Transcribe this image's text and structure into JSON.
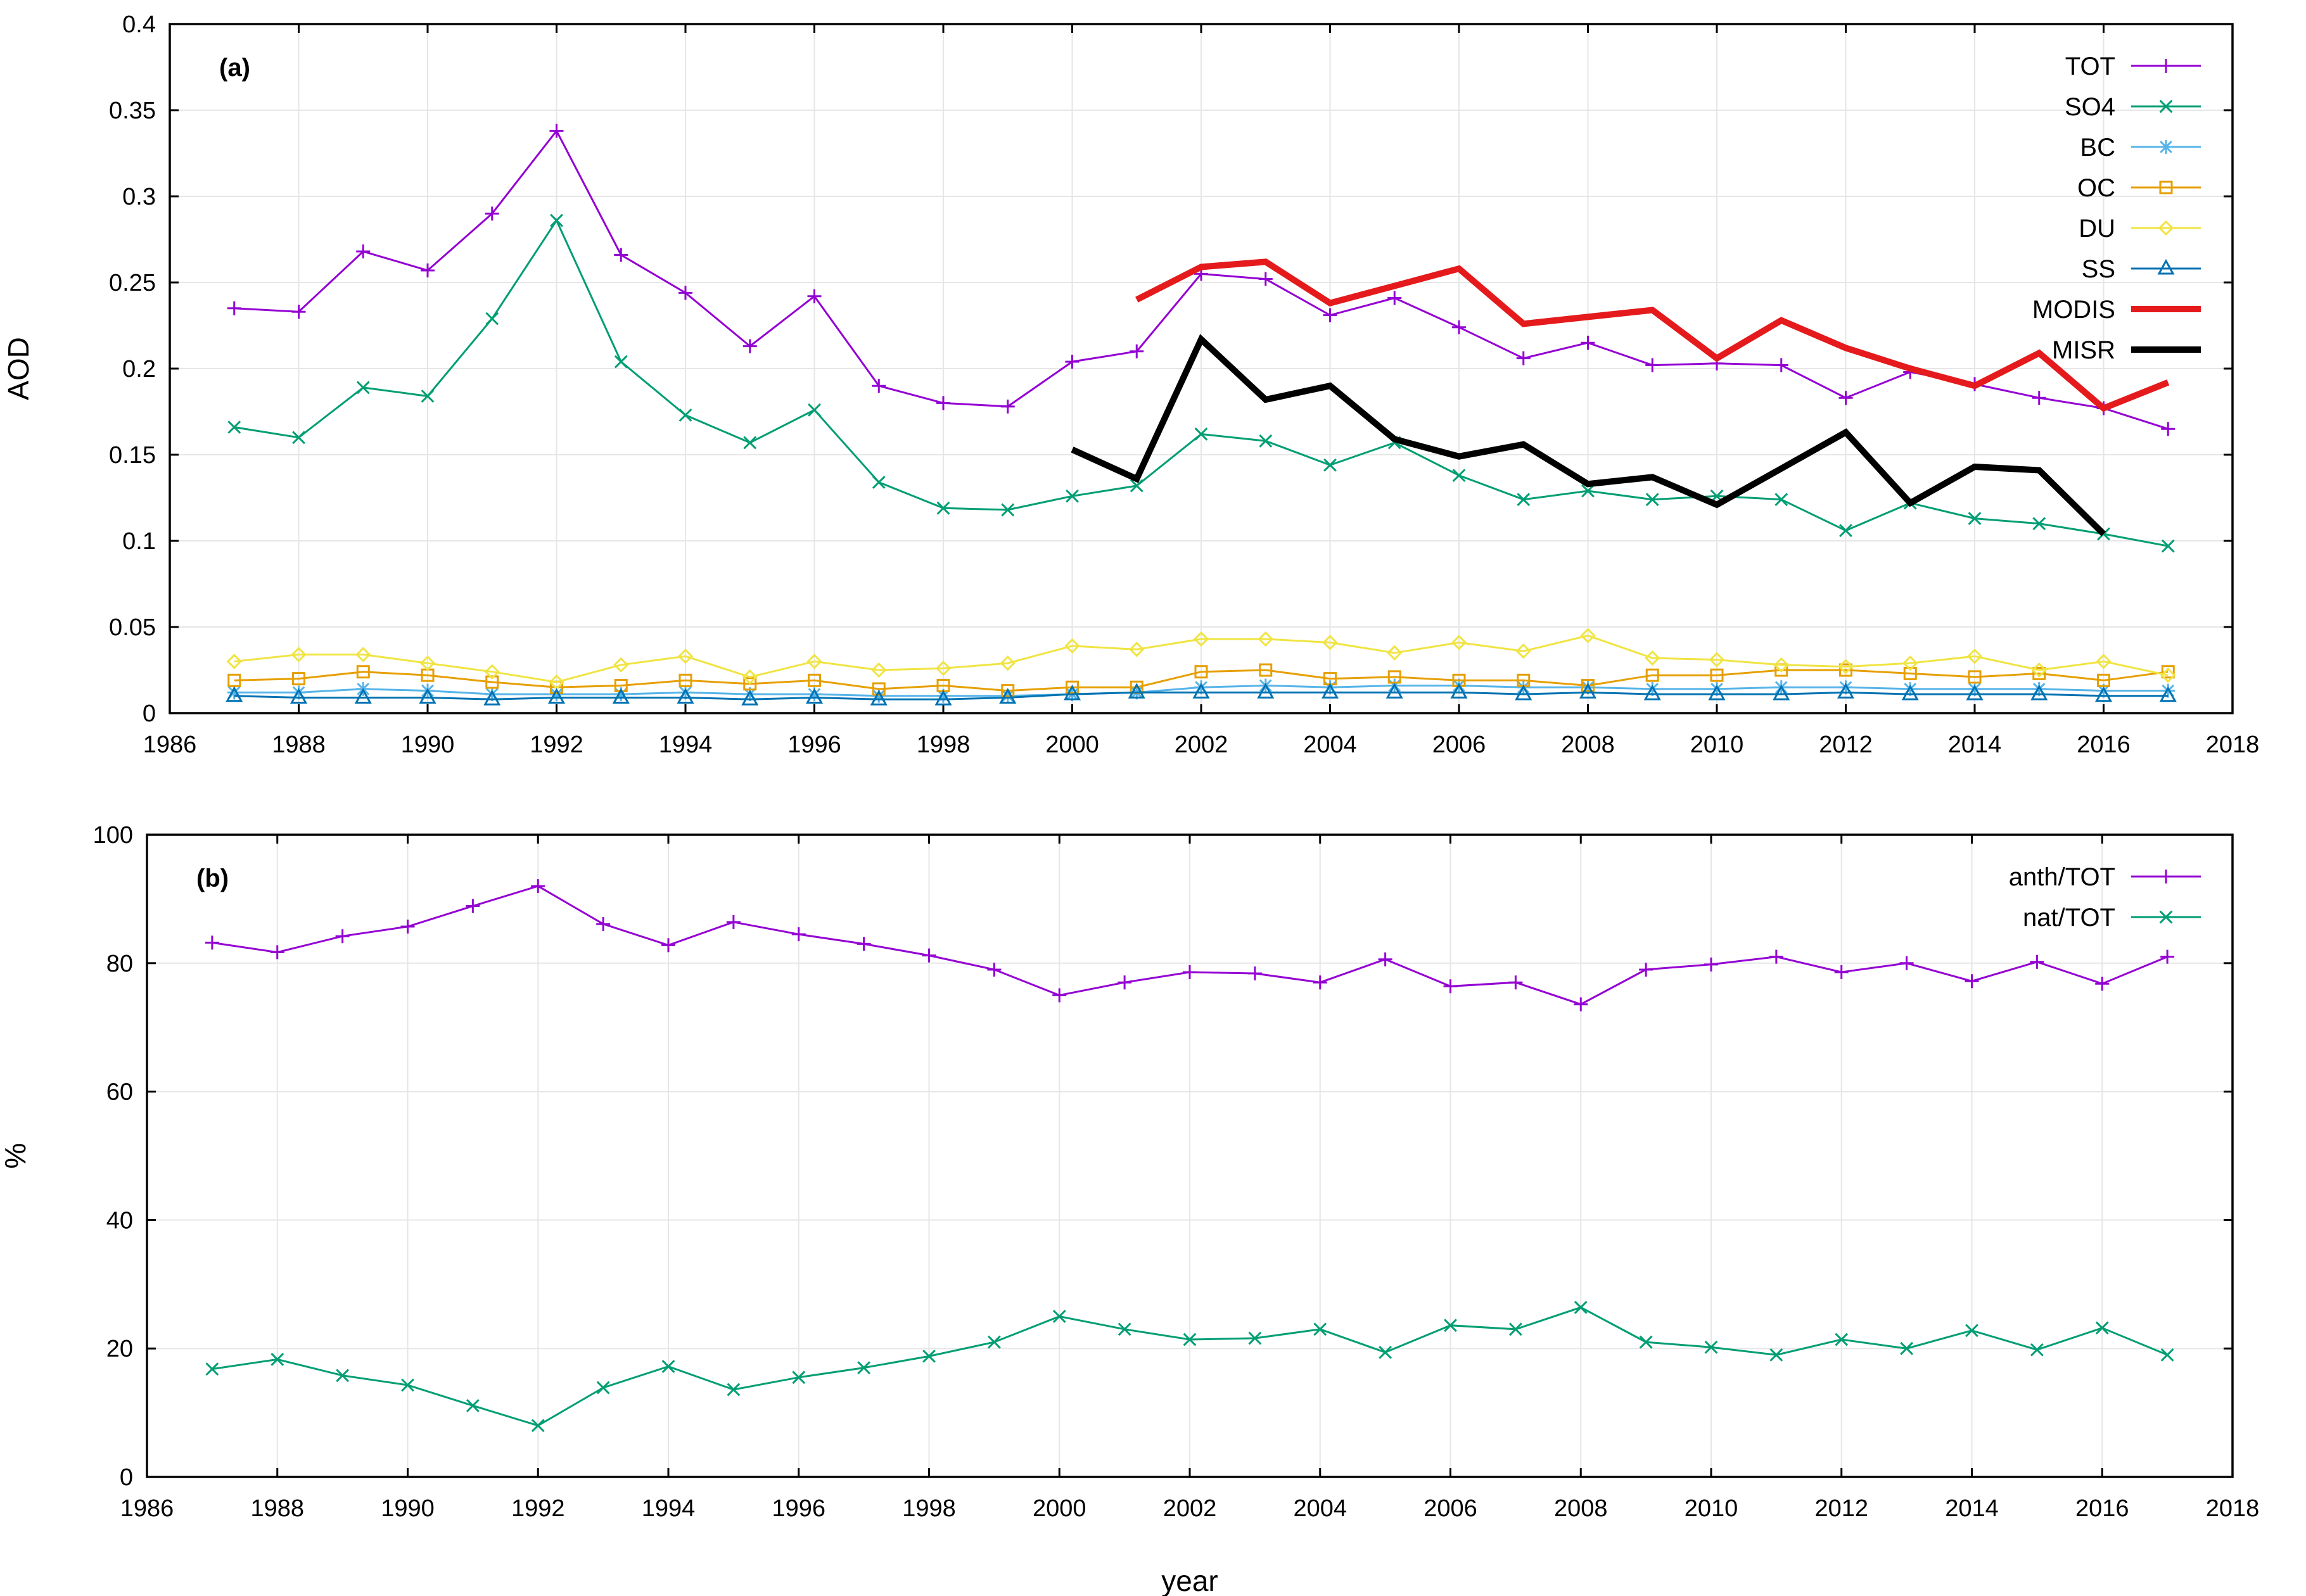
{
  "chart_data": [
    {
      "type": "line",
      "panel_label": "(a)",
      "xlabel": "",
      "ylabel": "AOD",
      "xlim": [
        1986,
        2018
      ],
      "ylim": [
        0,
        0.4
      ],
      "xticks": [
        "1986",
        "1988",
        "1990",
        "1992",
        "1994",
        "1996",
        "1998",
        "2000",
        "2002",
        "2004",
        "2006",
        "2008",
        "2010",
        "2012",
        "2014",
        "2016",
        "2018"
      ],
      "yticks": [
        "0",
        "0.05",
        "0.1",
        "0.15",
        "0.2",
        "0.25",
        "0.3",
        "0.35",
        "0.4"
      ],
      "grid": true,
      "legend_position": "top-right",
      "series": [
        {
          "name": "TOT",
          "color": "#9400d3",
          "marker": "plus",
          "width": 2,
          "x": [
            1987,
            1988,
            1989,
            1990,
            1991,
            1992,
            1993,
            1994,
            1995,
            1996,
            1997,
            1998,
            1999,
            2000,
            2001,
            2002,
            2003,
            2004,
            2005,
            2006,
            2007,
            2008,
            2009,
            2010,
            2011,
            2012,
            2013,
            2014,
            2015,
            2016,
            2017
          ],
          "values": [
            0.235,
            0.233,
            0.268,
            0.257,
            0.29,
            0.338,
            0.266,
            0.244,
            0.213,
            0.242,
            0.19,
            0.18,
            0.178,
            0.204,
            0.21,
            0.255,
            0.252,
            0.231,
            0.241,
            0.224,
            0.206,
            0.215,
            0.202,
            0.203,
            0.202,
            0.183,
            0.198,
            0.191,
            0.183,
            0.177,
            0.165
          ]
        },
        {
          "name": "SO4",
          "color": "#009e73",
          "marker": "x",
          "width": 2,
          "x": [
            1987,
            1988,
            1989,
            1990,
            1991,
            1992,
            1993,
            1994,
            1995,
            1996,
            1997,
            1998,
            1999,
            2000,
            2001,
            2002,
            2003,
            2004,
            2005,
            2006,
            2007,
            2008,
            2009,
            2010,
            2011,
            2012,
            2013,
            2014,
            2015,
            2016,
            2017
          ],
          "values": [
            0.166,
            0.16,
            0.189,
            0.184,
            0.229,
            0.286,
            0.204,
            0.173,
            0.157,
            0.176,
            0.134,
            0.119,
            0.118,
            0.126,
            0.132,
            0.162,
            0.158,
            0.144,
            0.157,
            0.138,
            0.124,
            0.129,
            0.124,
            0.126,
            0.124,
            0.106,
            0.122,
            0.113,
            0.11,
            0.104,
            0.097
          ]
        },
        {
          "name": "BC",
          "color": "#56b4e9",
          "marker": "star",
          "width": 2,
          "x": [
            1987,
            1988,
            1989,
            1990,
            1991,
            1992,
            1993,
            1994,
            1995,
            1996,
            1997,
            1998,
            1999,
            2000,
            2001,
            2002,
            2003,
            2004,
            2005,
            2006,
            2007,
            2008,
            2009,
            2010,
            2011,
            2012,
            2013,
            2014,
            2015,
            2016,
            2017
          ],
          "values": [
            0.012,
            0.012,
            0.014,
            0.013,
            0.011,
            0.011,
            0.011,
            0.012,
            0.011,
            0.011,
            0.01,
            0.01,
            0.01,
            0.011,
            0.012,
            0.015,
            0.016,
            0.015,
            0.016,
            0.016,
            0.015,
            0.015,
            0.014,
            0.014,
            0.015,
            0.015,
            0.014,
            0.014,
            0.014,
            0.013,
            0.013
          ]
        },
        {
          "name": "OC",
          "color": "#e69f00",
          "marker": "square",
          "width": 2,
          "x": [
            1987,
            1988,
            1989,
            1990,
            1991,
            1992,
            1993,
            1994,
            1995,
            1996,
            1997,
            1998,
            1999,
            2000,
            2001,
            2002,
            2003,
            2004,
            2005,
            2006,
            2007,
            2008,
            2009,
            2010,
            2011,
            2012,
            2013,
            2014,
            2015,
            2016,
            2017
          ],
          "values": [
            0.019,
            0.02,
            0.024,
            0.022,
            0.018,
            0.015,
            0.016,
            0.019,
            0.017,
            0.019,
            0.014,
            0.016,
            0.013,
            0.015,
            0.015,
            0.024,
            0.025,
            0.02,
            0.021,
            0.019,
            0.019,
            0.016,
            0.022,
            0.022,
            0.025,
            0.025,
            0.023,
            0.021,
            0.023,
            0.019,
            0.024
          ]
        },
        {
          "name": "DU",
          "color": "#f0e442",
          "marker": "diamond",
          "width": 2,
          "x": [
            1987,
            1988,
            1989,
            1990,
            1991,
            1992,
            1993,
            1994,
            1995,
            1996,
            1997,
            1998,
            1999,
            2000,
            2001,
            2002,
            2003,
            2004,
            2005,
            2006,
            2007,
            2008,
            2009,
            2010,
            2011,
            2012,
            2013,
            2014,
            2015,
            2016,
            2017
          ],
          "values": [
            0.03,
            0.034,
            0.034,
            0.029,
            0.024,
            0.018,
            0.028,
            0.033,
            0.021,
            0.03,
            0.025,
            0.026,
            0.029,
            0.039,
            0.037,
            0.043,
            0.043,
            0.041,
            0.035,
            0.041,
            0.036,
            0.045,
            0.032,
            0.031,
            0.028,
            0.027,
            0.029,
            0.033,
            0.025,
            0.03,
            0.022
          ]
        },
        {
          "name": "SS",
          "color": "#0072b2",
          "marker": "triangle",
          "width": 2,
          "x": [
            1987,
            1988,
            1989,
            1990,
            1991,
            1992,
            1993,
            1994,
            1995,
            1996,
            1997,
            1998,
            1999,
            2000,
            2001,
            2002,
            2003,
            2004,
            2005,
            2006,
            2007,
            2008,
            2009,
            2010,
            2011,
            2012,
            2013,
            2014,
            2015,
            2016,
            2017
          ],
          "values": [
            0.01,
            0.009,
            0.009,
            0.009,
            0.008,
            0.009,
            0.009,
            0.009,
            0.008,
            0.009,
            0.008,
            0.008,
            0.009,
            0.011,
            0.012,
            0.012,
            0.012,
            0.012,
            0.012,
            0.012,
            0.011,
            0.012,
            0.011,
            0.011,
            0.011,
            0.012,
            0.011,
            0.011,
            0.011,
            0.01,
            0.01
          ]
        },
        {
          "name": "MODIS",
          "color": "#e41a1c",
          "marker": "none",
          "width": 6,
          "x": [
            2001,
            2002,
            2003,
            2004,
            2005,
            2006,
            2007,
            2008,
            2009,
            2010,
            2011,
            2012,
            2013,
            2014,
            2015,
            2016,
            2017
          ],
          "values": [
            0.24,
            0.259,
            0.262,
            0.238,
            0.248,
            0.258,
            0.226,
            0.23,
            0.234,
            0.206,
            0.228,
            0.212,
            0.2,
            0.19,
            0.209,
            0.177,
            0.192
          ]
        },
        {
          "name": "MISR",
          "color": "#000000",
          "marker": "none",
          "width": 6,
          "x": [
            2000,
            2001,
            2002,
            2003,
            2004,
            2005,
            2006,
            2007,
            2008,
            2009,
            2010,
            2011,
            2012,
            2013,
            2014,
            2015,
            2016
          ],
          "values": [
            0.153,
            0.136,
            0.217,
            0.182,
            0.19,
            0.159,
            0.149,
            0.156,
            0.133,
            0.137,
            0.121,
            0.142,
            0.163,
            0.122,
            0.143,
            0.141,
            0.104
          ]
        }
      ]
    },
    {
      "type": "line",
      "panel_label": "(b)",
      "xlabel": "year",
      "ylabel": "%",
      "xlim": [
        1986,
        2018
      ],
      "ylim": [
        0,
        100
      ],
      "xticks": [
        "1986",
        "1988",
        "1990",
        "1992",
        "1994",
        "1996",
        "1998",
        "2000",
        "2002",
        "2004",
        "2006",
        "2008",
        "2010",
        "2012",
        "2014",
        "2016",
        "2018"
      ],
      "yticks": [
        "0",
        "20",
        "40",
        "60",
        "80",
        "100"
      ],
      "grid": true,
      "legend_position": "top-right",
      "series": [
        {
          "name": "anth/TOT",
          "color": "#9400d3",
          "marker": "plus",
          "width": 2,
          "x": [
            1987,
            1988,
            1989,
            1990,
            1991,
            1992,
            1993,
            1994,
            1995,
            1996,
            1997,
            1998,
            1999,
            2000,
            2001,
            2002,
            2003,
            2004,
            2005,
            2006,
            2007,
            2008,
            2009,
            2010,
            2011,
            2012,
            2013,
            2014,
            2015,
            2016,
            2017
          ],
          "values": [
            83.2,
            81.7,
            84.2,
            85.7,
            88.9,
            92.0,
            86.1,
            82.8,
            86.4,
            84.5,
            83.0,
            81.2,
            79.0,
            75.0,
            77.0,
            78.6,
            78.4,
            77.0,
            80.6,
            76.4,
            77.0,
            73.6,
            79.0,
            79.8,
            81.0,
            78.6,
            80.0,
            77.2,
            80.2,
            76.8,
            81.0
          ]
        },
        {
          "name": "nat/TOT",
          "color": "#009e73",
          "marker": "x",
          "width": 2,
          "x": [
            1987,
            1988,
            1989,
            1990,
            1991,
            1992,
            1993,
            1994,
            1995,
            1996,
            1997,
            1998,
            1999,
            2000,
            2001,
            2002,
            2003,
            2004,
            2005,
            2006,
            2007,
            2008,
            2009,
            2010,
            2011,
            2012,
            2013,
            2014,
            2015,
            2016,
            2017
          ],
          "values": [
            16.8,
            18.3,
            15.8,
            14.3,
            11.1,
            8.0,
            13.9,
            17.2,
            13.6,
            15.5,
            17.0,
            18.8,
            21.0,
            25.0,
            23.0,
            21.4,
            21.6,
            23.0,
            19.4,
            23.6,
            23.0,
            26.4,
            21.0,
            20.2,
            19.0,
            21.4,
            20.0,
            22.8,
            19.8,
            23.2,
            19.0
          ]
        }
      ]
    }
  ]
}
